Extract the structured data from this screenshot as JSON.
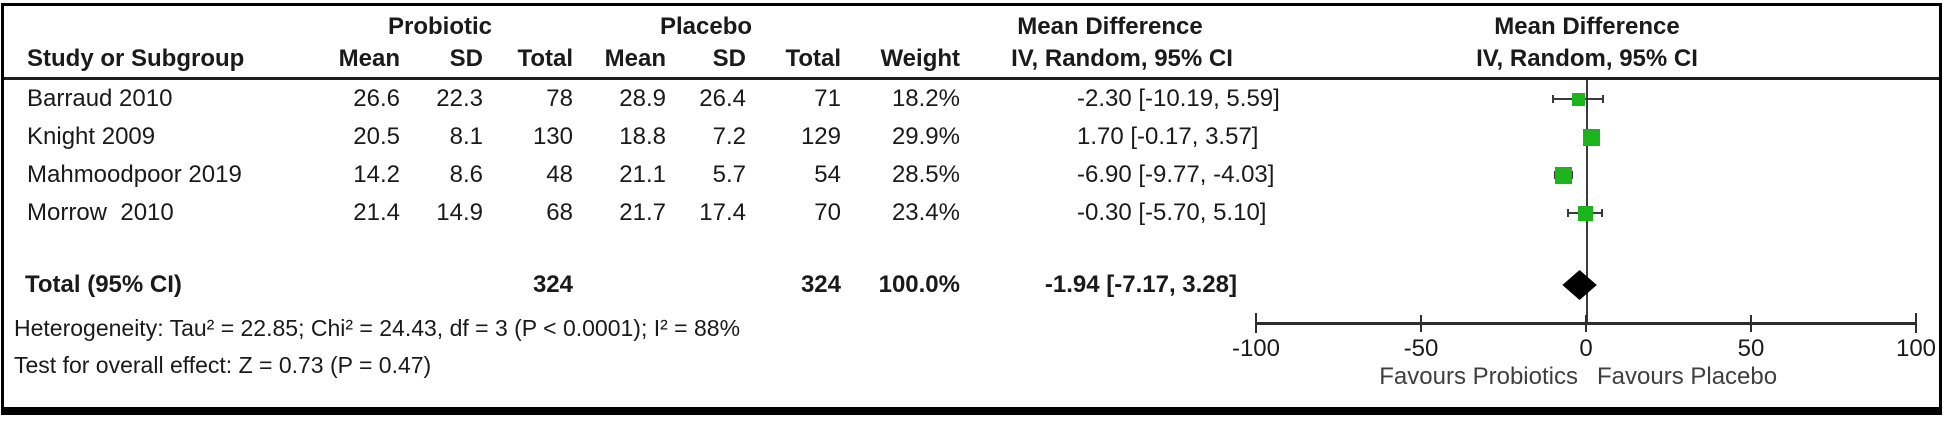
{
  "table": {
    "group_headers": {
      "probiotic": "Probiotic",
      "placebo": "Placebo",
      "mean_difference": "Mean Difference"
    },
    "column_headers": {
      "study": "Study or Subgroup",
      "mean": "Mean",
      "sd": "SD",
      "total": "Total",
      "weight": "Weight",
      "iv_ci": "IV, Random, 95% CI"
    },
    "rows": [
      {
        "study": "Barraud 2010",
        "p_mean": "26.6",
        "p_sd": "22.3",
        "p_total": "78",
        "c_mean": "28.9",
        "c_sd": "26.4",
        "c_total": "71",
        "weight": "18.2%",
        "ci": "-2.30 [-10.19, 5.59]"
      },
      {
        "study": "Knight 2009",
        "p_mean": "20.5",
        "p_sd": "8.1",
        "p_total": "130",
        "c_mean": "18.8",
        "c_sd": "7.2",
        "c_total": "129",
        "weight": "29.9%",
        "ci": "1.70 [-0.17, 3.57]"
      },
      {
        "study": "Mahmoodpoor 2019",
        "p_mean": "14.2",
        "p_sd": "8.6",
        "p_total": "48",
        "c_mean": "21.1",
        "c_sd": "5.7",
        "c_total": "54",
        "weight": "28.5%",
        "ci": "-6.90 [-9.77, -4.03]"
      },
      {
        "study": "Morrow  2010",
        "p_mean": "21.4",
        "p_sd": "14.9",
        "p_total": "68",
        "c_mean": "21.7",
        "c_sd": "17.4",
        "c_total": "70",
        "weight": "23.4%",
        "ci": "-0.30 [-5.70, 5.10]"
      }
    ],
    "total_row": {
      "label": "Total (95% CI)",
      "p_total": "324",
      "c_total": "324",
      "weight": "100.0%",
      "ci": "-1.94 [-7.17, 3.28]"
    },
    "footnotes": {
      "heterogeneity": "Heterogeneity: Tau² = 22.85; Chi² = 24.43, df = 3 (P < 0.0001); I² = 88%",
      "overall_effect": "Test for overall effect: Z = 0.73 (P = 0.47)"
    }
  },
  "plot": {
    "header_line1": "Mean Difference",
    "header_line2": "IV, Random, 95% CI",
    "favours_left": "Favours Probiotics",
    "favours_right": "Favours Placebo",
    "marker_color": "#1cb41c",
    "diamond_color": "#000000"
  },
  "chart_data": {
    "type": "scatter",
    "subtype": "forest-plot",
    "title": "Mean Difference IV, Random, 95% CI",
    "studies": [
      "Barraud 2010",
      "Knight 2009",
      "Mahmoodpoor 2019",
      "Morrow  2010"
    ],
    "mean_difference": [
      -2.3,
      1.7,
      -6.9,
      -0.3
    ],
    "ci_lower": [
      -10.19,
      -0.17,
      -9.77,
      -5.7
    ],
    "ci_upper": [
      5.59,
      3.57,
      -4.03,
      5.1
    ],
    "weights_pct": [
      18.2,
      29.9,
      28.5,
      23.4
    ],
    "total": {
      "md": -1.94,
      "ci_lower": -7.17,
      "ci_upper": 3.28,
      "weight_pct": 100.0
    },
    "xlim": [
      -100,
      100
    ],
    "x_ticks": [
      -100,
      -50,
      0,
      50,
      100
    ],
    "xlabel_left": "Favours Probiotics",
    "xlabel_right": "Favours Placebo",
    "grid": false,
    "legend": false
  }
}
